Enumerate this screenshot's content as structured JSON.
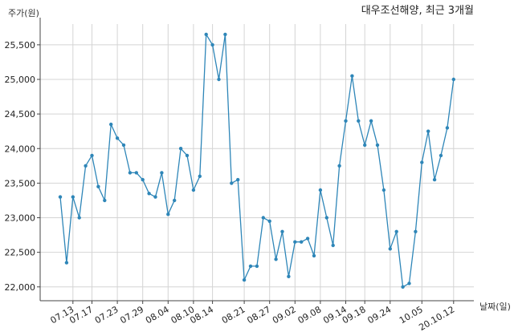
{
  "chart_data": {
    "type": "line",
    "title": "대우조선해양, 최근 3개월",
    "ylabel": "주가(원)",
    "xlabel": "날짜(일)",
    "ylim": [
      21800,
      25800
    ],
    "yticks": [
      22000,
      22500,
      23000,
      23500,
      24000,
      24500,
      25000,
      25500
    ],
    "ytick_labels": [
      "22,000",
      "22,500",
      "23,000",
      "23,500",
      "24,000",
      "24,500",
      "25,000",
      "25,500"
    ],
    "xtick_labels": [
      "07.13",
      "07.17",
      "07.23",
      "07.29",
      "08.04",
      "08.10",
      "08.14",
      "08.21",
      "08.27",
      "09.02",
      "09.08",
      "09.14",
      "09.18",
      "09.24",
      "10.05",
      "20.10.12"
    ],
    "xtick_index": [
      2,
      5,
      9,
      13,
      17,
      21,
      24,
      29,
      33,
      37,
      41,
      45,
      48,
      52,
      57,
      62
    ],
    "grid": true,
    "color": "#2e86b8",
    "series": [
      {
        "values": [
          23300,
          22350,
          23300,
          23000,
          23750,
          23900,
          23450,
          23250,
          24350,
          24150,
          24050,
          23650,
          23650,
          23550,
          23350,
          23300,
          23650,
          23050,
          23250,
          24000,
          23900,
          23400,
          23600,
          25650,
          25500,
          25000,
          25650,
          23500,
          23550,
          22100,
          22300,
          22300,
          23000,
          22950,
          22400,
          22800,
          22150,
          22650,
          22650,
          22700,
          22450,
          23400,
          23000,
          22600,
          23750,
          24400,
          25050,
          24400,
          24050,
          24400,
          24050,
          23400,
          22550,
          22800,
          22000,
          22050,
          22800,
          23800,
          24250,
          23550,
          23900,
          24300,
          25000
        ]
      }
    ]
  }
}
